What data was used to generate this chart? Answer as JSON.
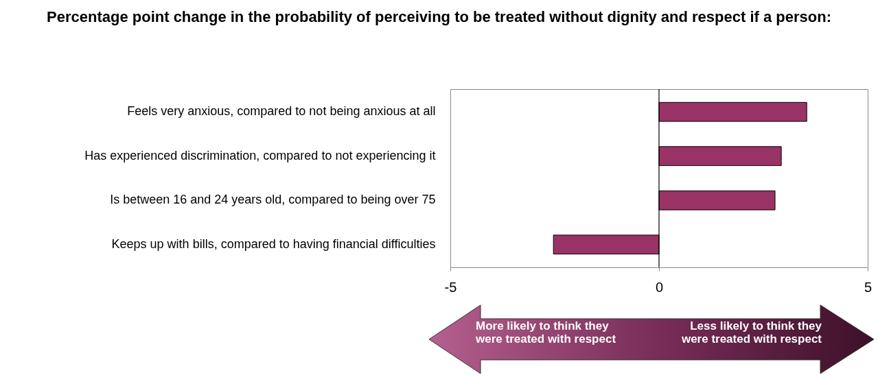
{
  "chart_data": {
    "type": "bar",
    "orientation": "horizontal",
    "title": "Percentage point change in the probability of perceiving to be treated without dignity and respect if a person:",
    "categories": [
      "Feels very anxious, compared to not being anxious at all",
      "Has experienced discrimination, compared to not experiencing it",
      "Is between 16 and 24 years old, compared to being over 75",
      "Keeps up with bills, compared to having financial difficulties"
    ],
    "values": [
      3.54,
      2.93,
      2.78,
      -2.53
    ],
    "color": "#993366",
    "xlim": [
      -5,
      5
    ],
    "xticks": [
      -5,
      0,
      5
    ],
    "grid": false,
    "ref_lines": [
      {
        "axis": "x",
        "value": 0
      }
    ],
    "annotations": [
      "More likely to think they were treated with respect",
      "Less likely to think they were treated with  respect"
    ]
  }
}
